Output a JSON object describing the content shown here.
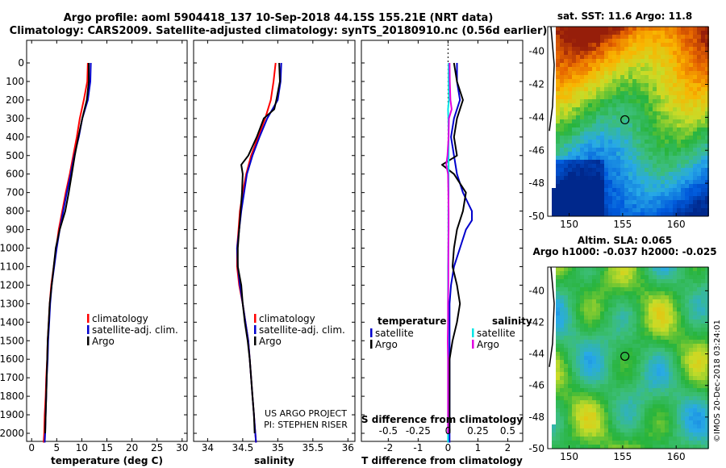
{
  "title_line1": "Argo profile: aoml 5904418_137 10-Sep-2018 44.15S 155.21E (NRT data)",
  "title_line2": "Climatology: CARS2009. Satellite-adjusted climatology: synTS_20180910.nc (0.56d earlier)",
  "project_line1": "US ARGO PROJECT",
  "project_line2": "PI: STEPHEN RISER",
  "credit": "©IMOS 20-Dec-2018 03:24:01",
  "colors": {
    "climatology": "#ff0000",
    "satellite": "#0000cc",
    "argo": "#000000",
    "sal_satellite": "#00e5e5",
    "sal_argo": "#e000e0"
  },
  "icons": {
    "legend_swatch": "vertical-bar-icon"
  },
  "chart_data": [
    {
      "type": "line",
      "name": "temperature profile",
      "xlabel": "temperature (deg C)",
      "xlim": [
        -1,
        31
      ],
      "ylim": [
        0,
        2050
      ],
      "y_inverted": true,
      "xticks": [
        "0",
        "5",
        "10",
        "15",
        "20",
        "25",
        "30"
      ],
      "yticks": [
        "0",
        "100",
        "200",
        "300",
        "400",
        "500",
        "600",
        "700",
        "800",
        "900",
        "1000",
        "1100",
        "1200",
        "1300",
        "1400",
        "1500",
        "1600",
        "1700",
        "1800",
        "1900",
        "2000"
      ],
      "legend": {
        "position": "lower-right",
        "entries": [
          "climatology",
          "satellite-adj. clim.",
          "Argo"
        ]
      },
      "series": [
        {
          "name": "climatology",
          "color_key": "climatology",
          "points": [
            [
              11.2,
              0
            ],
            [
              11.1,
              100
            ],
            [
              10.4,
              200
            ],
            [
              9.6,
              300
            ],
            [
              9.0,
              400
            ],
            [
              8.3,
              500
            ],
            [
              7.6,
              600
            ],
            [
              6.8,
              700
            ],
            [
              6.1,
              800
            ],
            [
              5.4,
              900
            ],
            [
              4.9,
              1000
            ],
            [
              4.4,
              1100
            ],
            [
              3.9,
              1200
            ],
            [
              3.6,
              1300
            ],
            [
              3.4,
              1400
            ],
            [
              3.2,
              1500
            ],
            [
              3.1,
              1600
            ],
            [
              2.9,
              1700
            ],
            [
              2.8,
              1800
            ],
            [
              2.6,
              1900
            ],
            [
              2.5,
              2000
            ],
            [
              2.4,
              2050
            ]
          ]
        },
        {
          "name": "satellite-adj. clim.",
          "color_key": "satellite",
          "points": [
            [
              11.8,
              0
            ],
            [
              11.7,
              100
            ],
            [
              11.2,
              200
            ],
            [
              10.1,
              300
            ],
            [
              9.4,
              400
            ],
            [
              8.5,
              500
            ],
            [
              7.8,
              600
            ],
            [
              7.0,
              700
            ],
            [
              6.3,
              800
            ],
            [
              5.6,
              900
            ],
            [
              5.0,
              1000
            ],
            [
              4.5,
              1100
            ],
            [
              4.0,
              1200
            ],
            [
              3.7,
              1300
            ],
            [
              3.5,
              1400
            ],
            [
              3.3,
              1500
            ],
            [
              3.2,
              1600
            ],
            [
              3.0,
              1700
            ],
            [
              2.9,
              1800
            ],
            [
              2.8,
              1900
            ],
            [
              2.7,
              2000
            ],
            [
              2.6,
              2050
            ]
          ]
        },
        {
          "name": "Argo",
          "color_key": "argo",
          "points": [
            [
              11.4,
              0
            ],
            [
              11.4,
              100
            ],
            [
              11.0,
              200
            ],
            [
              10.1,
              300
            ],
            [
              9.3,
              400
            ],
            [
              8.6,
              500
            ],
            [
              8.0,
              600
            ],
            [
              7.4,
              700
            ],
            [
              6.7,
              800
            ],
            [
              5.6,
              900
            ],
            [
              4.8,
              1000
            ],
            [
              4.4,
              1100
            ],
            [
              4.0,
              1200
            ],
            [
              3.6,
              1300
            ],
            [
              3.4,
              1400
            ],
            [
              3.2,
              1500
            ],
            [
              3.1,
              1600
            ],
            [
              3.0,
              1700
            ],
            [
              2.9,
              1800
            ],
            [
              2.8,
              1900
            ],
            [
              2.7,
              2000
            ]
          ]
        }
      ]
    },
    {
      "type": "line",
      "name": "salinity profile",
      "xlabel": "salinity",
      "xlim": [
        33.8,
        36.1
      ],
      "ylim": [
        0,
        2050
      ],
      "y_inverted": true,
      "xticks": [
        "34",
        "34.5",
        "35",
        "35.5",
        "36"
      ],
      "legend": {
        "position": "lower-right",
        "entries": [
          "climatology",
          "satellite-adj. clim.",
          "Argo"
        ]
      },
      "series": [
        {
          "name": "climatology",
          "color_key": "climatology",
          "points": [
            [
              34.97,
              0
            ],
            [
              34.94,
              100
            ],
            [
              34.9,
              200
            ],
            [
              34.82,
              300
            ],
            [
              34.72,
              400
            ],
            [
              34.62,
              500
            ],
            [
              34.55,
              600
            ],
            [
              34.5,
              700
            ],
            [
              34.46,
              800
            ],
            [
              34.44,
              900
            ],
            [
              34.42,
              1000
            ],
            [
              34.42,
              1100
            ],
            [
              34.45,
              1200
            ],
            [
              34.5,
              1300
            ],
            [
              34.54,
              1400
            ],
            [
              34.58,
              1500
            ],
            [
              34.6,
              1600
            ],
            [
              34.62,
              1700
            ],
            [
              34.64,
              1800
            ],
            [
              34.66,
              1900
            ],
            [
              34.68,
              2000
            ],
            [
              34.69,
              2050
            ]
          ]
        },
        {
          "name": "satellite-adj. clim.",
          "color_key": "satellite",
          "points": [
            [
              35.05,
              0
            ],
            [
              35.04,
              100
            ],
            [
              35.0,
              200
            ],
            [
              34.85,
              300
            ],
            [
              34.74,
              400
            ],
            [
              34.64,
              500
            ],
            [
              34.56,
              600
            ],
            [
              34.52,
              700
            ],
            [
              34.48,
              800
            ],
            [
              34.45,
              900
            ],
            [
              34.42,
              1000
            ],
            [
              34.43,
              1100
            ],
            [
              34.46,
              1200
            ],
            [
              34.5,
              1300
            ],
            [
              34.54,
              1400
            ],
            [
              34.58,
              1500
            ],
            [
              34.6,
              1600
            ],
            [
              34.62,
              1700
            ],
            [
              34.64,
              1800
            ],
            [
              34.66,
              1900
            ],
            [
              34.68,
              2000
            ],
            [
              34.69,
              2050
            ]
          ]
        },
        {
          "name": "Argo",
          "color_key": "argo",
          "points": [
            [
              35.02,
              0
            ],
            [
              35.03,
              100
            ],
            [
              34.98,
              200
            ],
            [
              34.95,
              250
            ],
            [
              34.8,
              300
            ],
            [
              34.7,
              400
            ],
            [
              34.58,
              500
            ],
            [
              34.48,
              550
            ],
            [
              34.5,
              600
            ],
            [
              34.49,
              700
            ],
            [
              34.47,
              800
            ],
            [
              34.45,
              900
            ],
            [
              34.43,
              1000
            ],
            [
              34.43,
              1100
            ],
            [
              34.48,
              1200
            ],
            [
              34.5,
              1300
            ],
            [
              34.53,
              1400
            ],
            [
              34.57,
              1500
            ],
            [
              34.6,
              1600
            ],
            [
              34.62,
              1700
            ],
            [
              34.64,
              1800
            ],
            [
              34.66,
              1900
            ],
            [
              34.67,
              2000
            ]
          ]
        }
      ]
    },
    {
      "type": "line",
      "name": "difference from climatology",
      "xlabel": "T difference from climatology",
      "xlabel2": "S difference from climatology",
      "xlim": [
        -2.9,
        2.5
      ],
      "ylim": [
        0,
        2050
      ],
      "y_inverted": true,
      "xticks": [
        "-2",
        "-1",
        "0",
        "1",
        "2"
      ],
      "xticks2": [
        "-0.5",
        "-0.25",
        "0",
        "0.25",
        "0.5"
      ],
      "legend": {
        "position": "lower-center",
        "group_titles": [
          "temperature",
          "salinity"
        ],
        "entries": [
          "satellite",
          "Argo",
          "satellite",
          "Argo"
        ]
      },
      "series": [
        {
          "name": "temperature satellite",
          "color_key": "satellite",
          "points": [
            [
              0.3,
              0
            ],
            [
              0.3,
              100
            ],
            [
              0.4,
              200
            ],
            [
              0.2,
              300
            ],
            [
              0.1,
              400
            ],
            [
              0.2,
              500
            ],
            [
              0.3,
              600
            ],
            [
              0.5,
              700
            ],
            [
              0.8,
              800
            ],
            [
              0.8,
              850
            ],
            [
              0.6,
              900
            ],
            [
              0.4,
              1000
            ],
            [
              0.2,
              1100
            ],
            [
              0.1,
              1200
            ],
            [
              0.05,
              1300
            ],
            [
              0.05,
              1400
            ],
            [
              0.05,
              1500
            ],
            [
              0.05,
              1600
            ],
            [
              0.05,
              1700
            ],
            [
              0.05,
              1800
            ],
            [
              0.05,
              1900
            ],
            [
              0.05,
              2000
            ],
            [
              0.05,
              2050
            ]
          ]
        },
        {
          "name": "temperature Argo",
          "color_key": "argo",
          "points": [
            [
              0.2,
              0
            ],
            [
              0.3,
              100
            ],
            [
              0.5,
              200
            ],
            [
              0.3,
              300
            ],
            [
              0.2,
              400
            ],
            [
              0.3,
              500
            ],
            [
              -0.2,
              550
            ],
            [
              0.2,
              600
            ],
            [
              0.6,
              700
            ],
            [
              0.5,
              800
            ],
            [
              0.3,
              900
            ],
            [
              0.2,
              1000
            ],
            [
              0.15,
              1100
            ],
            [
              0.3,
              1200
            ],
            [
              0.4,
              1300
            ],
            [
              0.3,
              1400
            ],
            [
              0.15,
              1500
            ],
            [
              0.05,
              1600
            ],
            [
              0.05,
              1700
            ],
            [
              0.05,
              1800
            ],
            [
              0.05,
              1900
            ],
            [
              0.05,
              2000
            ]
          ]
        },
        {
          "name": "salinity satellite",
          "color_key": "sal_satellite",
          "points": [
            [
              0.02,
              0
            ],
            [
              0.02,
              100
            ],
            [
              0.03,
              200
            ],
            [
              0.0,
              250
            ],
            [
              0.01,
              300
            ],
            [
              0.02,
              400
            ],
            [
              0.02,
              500
            ],
            [
              0.02,
              600
            ],
            [
              0.02,
              700
            ],
            [
              0.01,
              800
            ],
            [
              0.01,
              900
            ],
            [
              0.01,
              1000
            ],
            [
              0.0,
              1100
            ],
            [
              0.0,
              1200
            ],
            [
              0.0,
              1300
            ],
            [
              0.0,
              1400
            ],
            [
              0.0,
              1500
            ],
            [
              0.0,
              1600
            ],
            [
              0.0,
              1700
            ],
            [
              0.0,
              1800
            ],
            [
              0.0,
              1900
            ],
            [
              0.0,
              2000
            ],
            [
              0.0,
              2050
            ]
          ]
        },
        {
          "name": "salinity Argo",
          "color_key": "sal_argo",
          "points": [
            [
              0.05,
              0
            ],
            [
              0.06,
              100
            ],
            [
              0.08,
              200
            ],
            [
              0.12,
              250
            ],
            [
              0.03,
              300
            ],
            [
              0.02,
              400
            ],
            [
              -0.02,
              500
            ],
            [
              -0.06,
              550
            ],
            [
              0.0,
              600
            ],
            [
              0.01,
              700
            ],
            [
              0.02,
              800
            ],
            [
              0.02,
              900
            ],
            [
              0.01,
              1000
            ],
            [
              0.01,
              1100
            ],
            [
              0.01,
              1200
            ],
            [
              0.0,
              1300
            ],
            [
              0.0,
              1400
            ],
            [
              -0.01,
              1500
            ],
            [
              0.0,
              1600
            ],
            [
              0.0,
              1700
            ],
            [
              0.0,
              1800
            ],
            [
              0.0,
              1900
            ],
            [
              0.0,
              2000
            ]
          ]
        }
      ]
    },
    {
      "type": "heatmap",
      "name": "sst map",
      "title": "sat. SST: 11.6 Argo: 11.8",
      "xlim": [
        148,
        163
      ],
      "ylim": [
        -50,
        -38.5
      ],
      "xticks": [
        "150",
        "155",
        "160"
      ],
      "yticks": [
        "-40",
        "-42",
        "-44",
        "-46",
        "-48",
        "-50"
      ],
      "marker": {
        "lon": 155.21,
        "lat": -44.15
      }
    },
    {
      "type": "heatmap",
      "name": "sla map",
      "title": "Altim. SLA: 0.065",
      "subtitle": "Argo h1000: -0.037 h2000: -0.025",
      "xlim": [
        148,
        163
      ],
      "ylim": [
        -50,
        -38.5
      ],
      "xticks": [
        "150",
        "155",
        "160"
      ],
      "yticks": [
        "-40",
        "-42",
        "-44",
        "-46",
        "-48",
        "-50"
      ],
      "marker": {
        "lon": 155.21,
        "lat": -44.15
      }
    }
  ]
}
